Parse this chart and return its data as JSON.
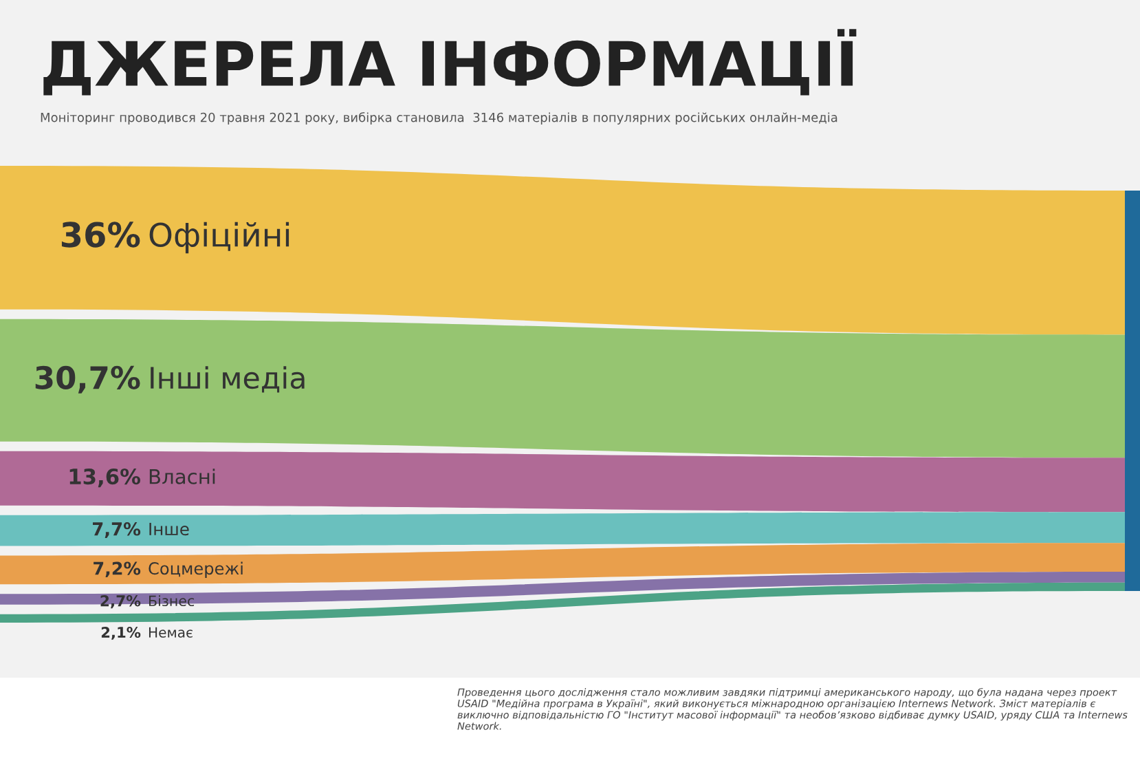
{
  "chart_data": {
    "type": "other",
    "title": "ДЖЕРЕЛА ІНФОРМАЦІЇ",
    "subtitle": "Моніторинг проводився 20 травня 2021 року, вибірка становила  3146 матеріалів в популярних російських онлайн-медіа",
    "categories": [
      "Офіційні",
      "Інші медіа",
      "Власні",
      "Інше",
      "Соцмережі",
      "Бізнес",
      "Немає"
    ],
    "values": [
      36,
      30.7,
      13.6,
      7.7,
      7.2,
      2.7,
      2.1
    ],
    "value_labels": [
      "36%",
      "30,7%",
      "13,6%",
      "7,7%",
      "7,2%",
      "2,7%",
      "2,1%"
    ],
    "colors": [
      "#eebb3a",
      "#8cc063",
      "#a95b8c",
      "#5bbab8",
      "#e8963a",
      "#7a64a0",
      "#3a9a7a"
    ],
    "annotations": [
      "Проведення цього дослідження стало можливим завдяки підтримці американського народу, що була надана через проект USAID \"Медійна програма в Україні\", який виконується міжнародною організацією Internews Network. Зміст матеріалів є виключно відповідальністю ГО \"Інститут масової інформації\" та необов’язково відбиває думку USAID, уряду США та Internews Network."
    ]
  }
}
